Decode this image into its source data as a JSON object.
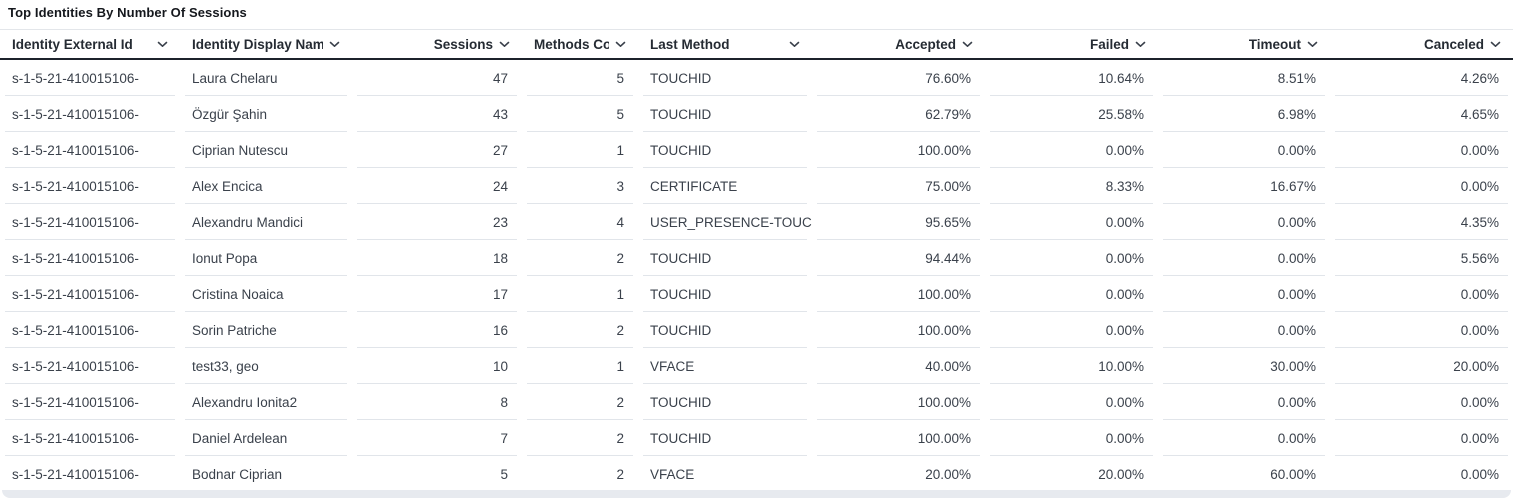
{
  "widget": {
    "title": "Top Identities By Number Of Sessions"
  },
  "table": {
    "columns": [
      {
        "id": "identity_external_id",
        "label": "Identity External Id",
        "align": "left",
        "width": 180,
        "sortable": true
      },
      {
        "id": "identity_display_name",
        "label": "Identity Display Name",
        "align": "left",
        "width": 172,
        "sortable": true
      },
      {
        "id": "sessions",
        "label": "Sessions",
        "align": "right",
        "width": 170,
        "sortable": true
      },
      {
        "id": "methods_count",
        "label": "Methods Count",
        "align": "right",
        "width": 116,
        "sortable": true
      },
      {
        "id": "last_method",
        "label": "Last Method",
        "align": "left",
        "width": 174,
        "sortable": true
      },
      {
        "id": "accepted",
        "label": "Accepted",
        "align": "right",
        "width": 173,
        "sortable": true
      },
      {
        "id": "failed",
        "label": "Failed",
        "align": "right",
        "width": 173,
        "sortable": true
      },
      {
        "id": "timeout",
        "label": "Timeout",
        "align": "right",
        "width": 172,
        "sortable": true
      },
      {
        "id": "canceled",
        "label": "Canceled",
        "align": "right",
        "width": 183,
        "sortable": true
      }
    ],
    "rows": [
      {
        "identity_external_id": "s-1-5-21-410015106-",
        "identity_display_name": "Laura Chelaru",
        "sessions": "47",
        "methods_count": "5",
        "last_method": "TOUCHID",
        "accepted": "76.60%",
        "failed": "10.64%",
        "timeout": "8.51%",
        "canceled": "4.26%"
      },
      {
        "identity_external_id": "s-1-5-21-410015106-",
        "identity_display_name": "Özgür Şahin",
        "sessions": "43",
        "methods_count": "5",
        "last_method": "TOUCHID",
        "accepted": "62.79%",
        "failed": "25.58%",
        "timeout": "6.98%",
        "canceled": "4.65%"
      },
      {
        "identity_external_id": "s-1-5-21-410015106-",
        "identity_display_name": "Ciprian Nutescu",
        "sessions": "27",
        "methods_count": "1",
        "last_method": "TOUCHID",
        "accepted": "100.00%",
        "failed": "0.00%",
        "timeout": "0.00%",
        "canceled": "0.00%"
      },
      {
        "identity_external_id": "s-1-5-21-410015106-",
        "identity_display_name": "Alex Encica",
        "sessions": "24",
        "methods_count": "3",
        "last_method": "CERTIFICATE",
        "accepted": "75.00%",
        "failed": "8.33%",
        "timeout": "16.67%",
        "canceled": "0.00%"
      },
      {
        "identity_external_id": "s-1-5-21-410015106-",
        "identity_display_name": "Alexandru Mandici",
        "sessions": "23",
        "methods_count": "4",
        "last_method": "USER_PRESENCE-TOUC",
        "accepted": "95.65%",
        "failed": "0.00%",
        "timeout": "0.00%",
        "canceled": "4.35%"
      },
      {
        "identity_external_id": "s-1-5-21-410015106-",
        "identity_display_name": "Ionut Popa",
        "sessions": "18",
        "methods_count": "2",
        "last_method": "TOUCHID",
        "accepted": "94.44%",
        "failed": "0.00%",
        "timeout": "0.00%",
        "canceled": "5.56%"
      },
      {
        "identity_external_id": "s-1-5-21-410015106-",
        "identity_display_name": "Cristina Noaica",
        "sessions": "17",
        "methods_count": "1",
        "last_method": "TOUCHID",
        "accepted": "100.00%",
        "failed": "0.00%",
        "timeout": "0.00%",
        "canceled": "0.00%"
      },
      {
        "identity_external_id": "s-1-5-21-410015106-",
        "identity_display_name": "Sorin Patriche",
        "sessions": "16",
        "methods_count": "2",
        "last_method": "TOUCHID",
        "accepted": "100.00%",
        "failed": "0.00%",
        "timeout": "0.00%",
        "canceled": "0.00%"
      },
      {
        "identity_external_id": "s-1-5-21-410015106-",
        "identity_display_name": "test33, geo",
        "sessions": "10",
        "methods_count": "1",
        "last_method": "VFACE",
        "accepted": "40.00%",
        "failed": "10.00%",
        "timeout": "30.00%",
        "canceled": "20.00%"
      },
      {
        "identity_external_id": "s-1-5-21-410015106-",
        "identity_display_name": "Alexandru Ionita2",
        "sessions": "8",
        "methods_count": "2",
        "last_method": "TOUCHID",
        "accepted": "100.00%",
        "failed": "0.00%",
        "timeout": "0.00%",
        "canceled": "0.00%"
      },
      {
        "identity_external_id": "s-1-5-21-410015106-",
        "identity_display_name": "Daniel Ardelean",
        "sessions": "7",
        "methods_count": "2",
        "last_method": "TOUCHID",
        "accepted": "100.00%",
        "failed": "0.00%",
        "timeout": "0.00%",
        "canceled": "0.00%"
      },
      {
        "identity_external_id": "s-1-5-21-410015106-",
        "identity_display_name": "Bodnar Ciprian",
        "sessions": "5",
        "methods_count": "2",
        "last_method": "VFACE",
        "accepted": "20.00%",
        "failed": "20.00%",
        "timeout": "60.00%",
        "canceled": "0.00%"
      }
    ]
  },
  "colors": {
    "header_border": "#1c222b",
    "row_divider": "#e1e5ea",
    "text": "#3a414b",
    "header_text": "#252b33",
    "scroll_track": "#e7eaef"
  }
}
